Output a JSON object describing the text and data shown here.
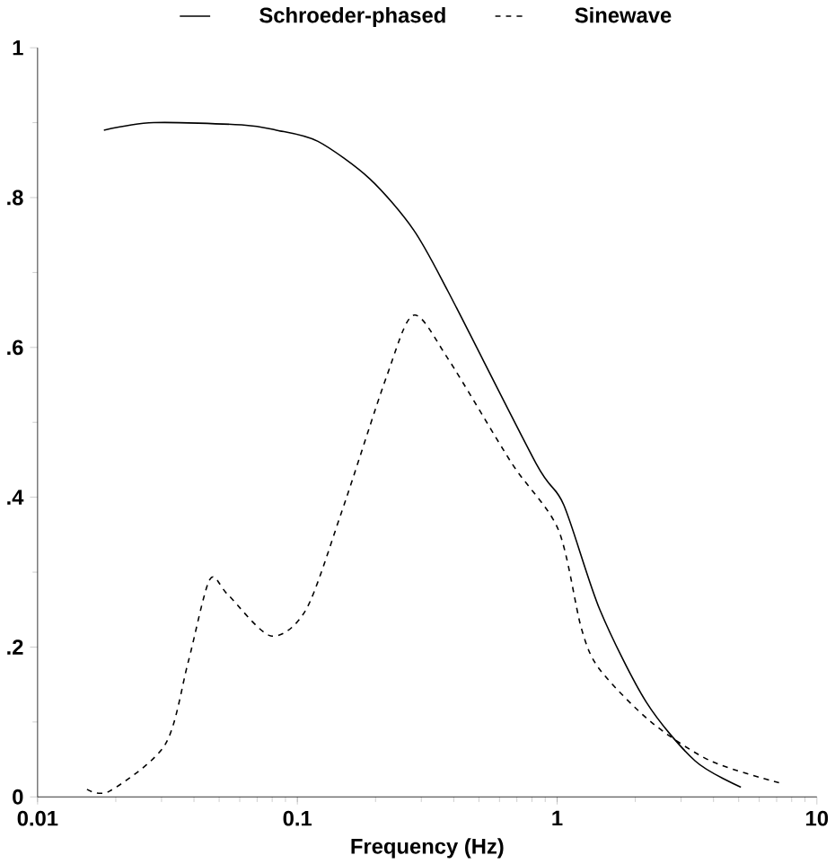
{
  "chart_data": {
    "type": "line",
    "xlabel": "Frequency (Hz)",
    "log": "x",
    "xlim": [
      0.01,
      10
    ],
    "xticks": [
      0.01,
      0.1,
      1,
      10
    ],
    "ylim": [
      0,
      1
    ],
    "yticks": [
      {
        "value": 0,
        "label": "0"
      },
      {
        "value": 0.2,
        "label": ".2"
      },
      {
        "value": 0.4,
        "label": ".4"
      },
      {
        "value": 0.6,
        "label": ".6"
      },
      {
        "value": 0.8,
        "label": ".8"
      },
      {
        "value": 1,
        "label": "1"
      }
    ],
    "legend": "top",
    "grid": false,
    "marker": "none",
    "series": [
      {
        "name": "Schroeder-phased",
        "color": "#000000",
        "line_style": "solid",
        "x": [
          0.018,
          0.028,
          0.061,
          0.083,
          0.12,
          0.19,
          0.28,
          0.38,
          0.83,
          1.06,
          1.46,
          2.2,
          3.4,
          5.1
        ],
        "values": [
          0.89,
          0.9,
          0.897,
          0.89,
          0.875,
          0.825,
          0.757,
          0.675,
          0.445,
          0.39,
          0.25,
          0.127,
          0.048,
          0.013
        ]
      },
      {
        "name": "Sinewave",
        "color": "#000000",
        "line_style": "dashed",
        "x": [
          0.0155,
          0.019,
          0.031,
          0.038,
          0.046,
          0.054,
          0.079,
          0.108,
          0.148,
          0.22,
          0.28,
          0.38,
          0.67,
          1.01,
          1.24,
          1.46,
          2.3,
          3.9,
          7.3
        ],
        "values": [
          0.01,
          0.008,
          0.07,
          0.18,
          0.29,
          0.27,
          0.215,
          0.25,
          0.38,
          0.56,
          0.643,
          0.585,
          0.445,
          0.357,
          0.225,
          0.17,
          0.1,
          0.048,
          0.018
        ]
      }
    ]
  }
}
